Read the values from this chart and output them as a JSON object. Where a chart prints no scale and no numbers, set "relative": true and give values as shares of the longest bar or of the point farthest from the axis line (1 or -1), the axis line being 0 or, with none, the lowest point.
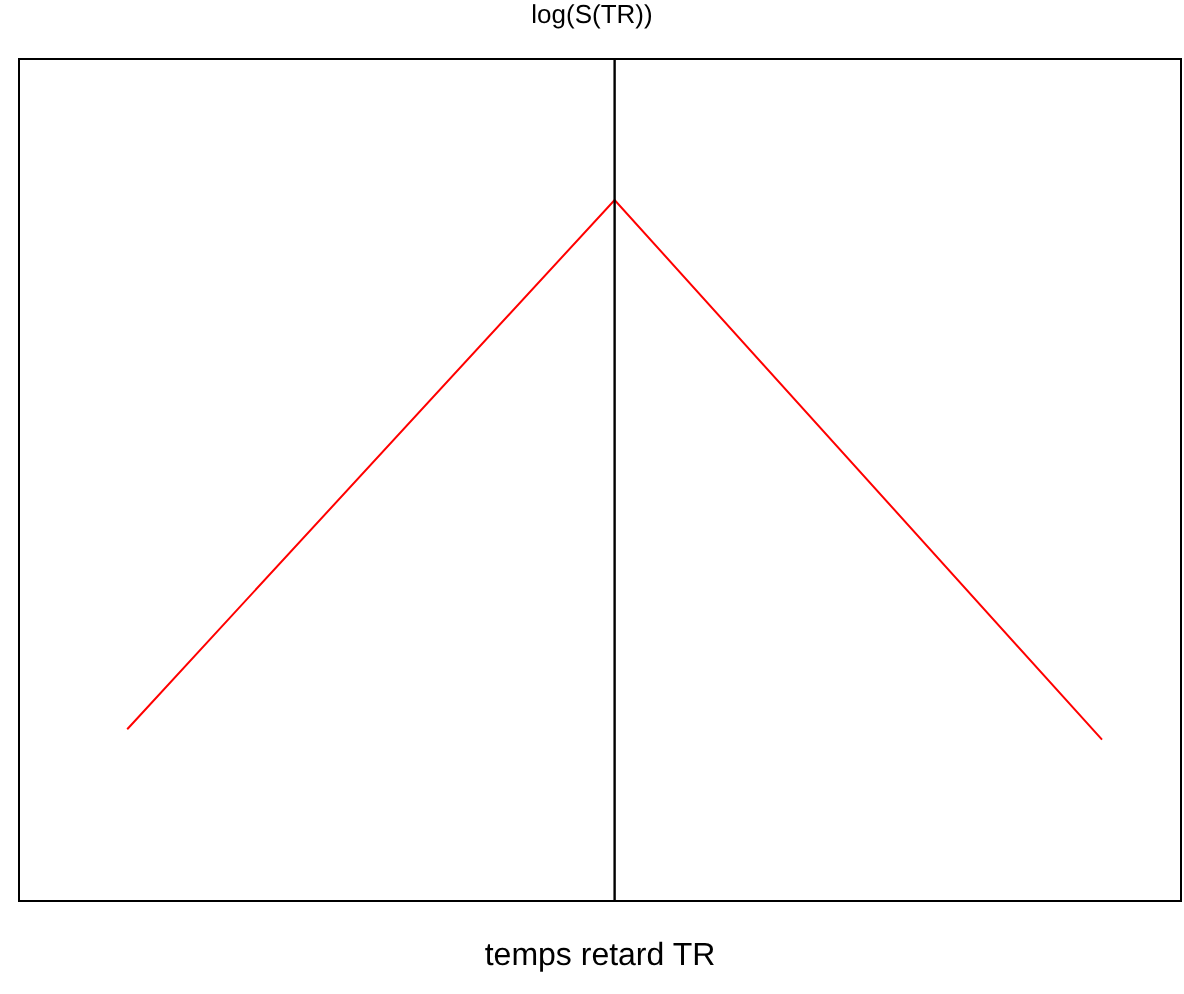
{
  "chart_data": {
    "type": "line",
    "title": "log(S(TR))",
    "xlabel": "temps retard TR",
    "relative": true,
    "categories": [
      null,
      null,
      null
    ],
    "series": [
      {
        "color": "#ff0000",
        "values": [
          0.244,
          1,
          0.229
        ]
      }
    ],
    "legend": false,
    "marker": "none",
    "line_style": "solid"
  }
}
